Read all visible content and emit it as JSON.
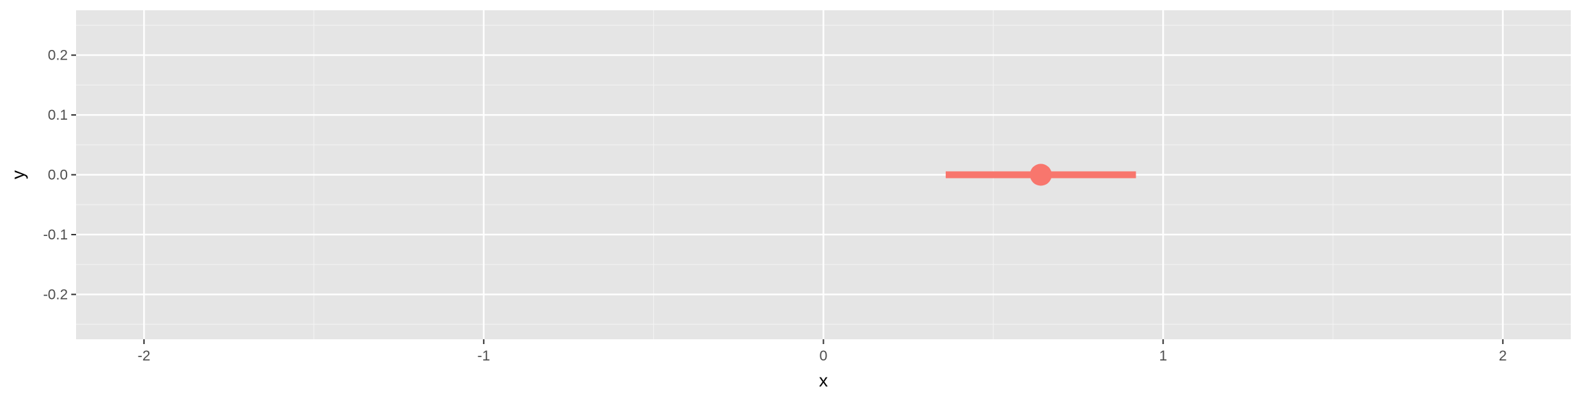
{
  "chart_data": {
    "type": "pointrange",
    "title": "",
    "xlabel": "x",
    "ylabel": "y",
    "xlim": [
      -2.2,
      2.2
    ],
    "ylim": [
      -0.275,
      0.275
    ],
    "x_ticks": [
      -2,
      -1,
      0,
      1,
      2
    ],
    "x_tick_labels": [
      "-2",
      "-1",
      "0",
      "1",
      "2"
    ],
    "y_ticks": [
      -0.2,
      -0.1,
      0.0,
      0.1,
      0.2
    ],
    "y_tick_labels": [
      "-0.2",
      "-0.1",
      "0.0",
      "0.1",
      "0.2"
    ],
    "grid": true,
    "background": "#e5e5e5",
    "points": [
      {
        "x": 0.64,
        "y": 0.0,
        "xmin": 0.36,
        "xmax": 0.92,
        "color": "#f8766d"
      }
    ]
  }
}
